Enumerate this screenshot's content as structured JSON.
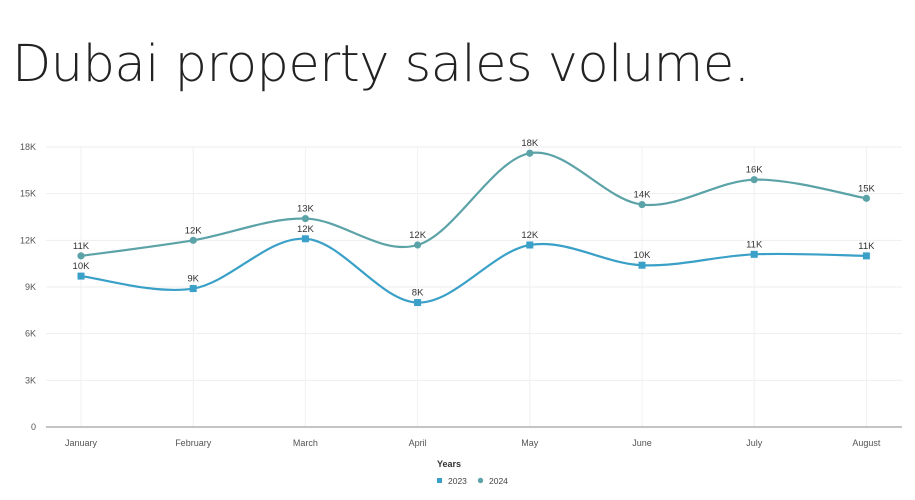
{
  "page": {
    "title": "Dubai property sales volume."
  },
  "chart_data": {
    "type": "line",
    "categories": [
      "January",
      "February",
      "March",
      "April",
      "May",
      "June",
      "July",
      "August"
    ],
    "series": [
      {
        "name": "2023",
        "values": [
          9700,
          8900,
          12100,
          8000,
          11700,
          10400,
          11100,
          11000
        ],
        "labels": [
          "10K",
          "9K",
          "12K",
          "8K",
          "12K",
          "10K",
          "11K",
          "11K"
        ],
        "color": "#3aa0c8",
        "marker": "square"
      },
      {
        "name": "2024",
        "values": [
          11000,
          12000,
          13400,
          11700,
          17600,
          14300,
          15900,
          14700
        ],
        "labels": [
          "11K",
          "12K",
          "13K",
          "12K",
          "18K",
          "14K",
          "16K",
          "15K"
        ],
        "color": "#5ca3a8",
        "marker": "circle"
      }
    ],
    "yticks": [
      "0",
      "3K",
      "6K",
      "9K",
      "12K",
      "15K",
      "18K"
    ],
    "ytick_values": [
      0,
      3000,
      6000,
      9000,
      12000,
      15000,
      18000
    ],
    "ylim": [
      0,
      18000
    ],
    "grid": true,
    "smooth": true,
    "legend": {
      "title": "Years",
      "position": "bottom"
    }
  }
}
